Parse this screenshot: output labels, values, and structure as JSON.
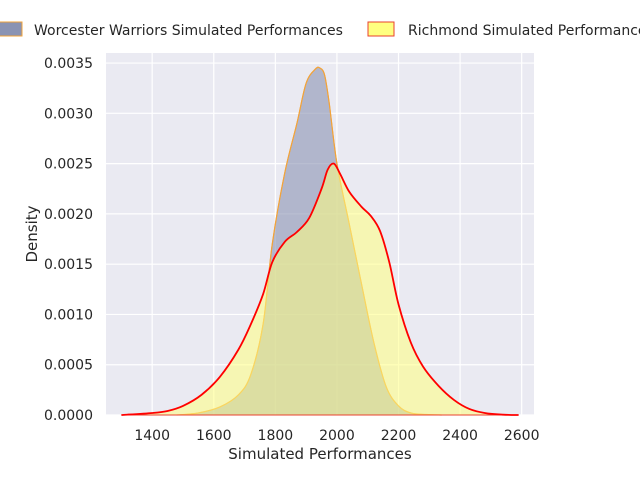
{
  "chart_data": {
    "type": "area",
    "title": "",
    "xlabel": "Simulated Performances",
    "ylabel": "Density",
    "xlim": [
      1250,
      2640
    ],
    "ylim": [
      0,
      0.0036
    ],
    "x_ticks": [
      1400,
      1600,
      1800,
      2000,
      2200,
      2400,
      2600
    ],
    "x_tick_labels": [
      "1400",
      "1600",
      "1800",
      "2000",
      "2200",
      "2400",
      "2600"
    ],
    "y_ticks": [
      0,
      0.0005,
      0.001,
      0.0015,
      0.002,
      0.0025,
      0.003,
      0.0035
    ],
    "y_tick_labels": [
      "0.0000",
      "0.0005",
      "0.0010",
      "0.0015",
      "0.0020",
      "0.0025",
      "0.0030",
      "0.0035"
    ],
    "grid": true,
    "legend_position": "top",
    "series": [
      {
        "name": "Worcester Warriors Simulated Performances",
        "fill": "#8a93b3",
        "edge": "#f2a33a",
        "x": [
          1480,
          1550,
          1620,
          1680,
          1720,
          1760,
          1790,
          1830,
          1870,
          1900,
          1930,
          1945,
          1960,
          1975,
          2000,
          2040,
          2080,
          2120,
          2160,
          2200,
          2240,
          2290,
          2340
        ],
        "y": [
          0.0,
          2e-05,
          8e-05,
          0.0002,
          0.0004,
          0.0009,
          0.0017,
          0.0024,
          0.0029,
          0.0033,
          0.00344,
          0.00345,
          0.00338,
          0.0031,
          0.0025,
          0.0019,
          0.0013,
          0.00072,
          0.00028,
          9e-05,
          2e-05,
          5e-06,
          0.0
        ]
      },
      {
        "name": "Richmond Simulated Performances",
        "fill": "#ffff80",
        "edge": "#e8422e",
        "line": "#ff0000",
        "x": [
          1300,
          1400,
          1450,
          1500,
          1560,
          1620,
          1680,
          1720,
          1760,
          1790,
          1830,
          1870,
          1910,
          1950,
          1970,
          1990,
          2010,
          2040,
          2080,
          2110,
          2140,
          2170,
          2200,
          2240,
          2280,
          2330,
          2380,
          2430,
          2480,
          2540,
          2590
        ],
        "y": [
          0.0,
          2e-05,
          4e-05,
          9e-05,
          0.0002,
          0.00038,
          0.00065,
          0.0009,
          0.0012,
          0.00152,
          0.00172,
          0.00182,
          0.00196,
          0.00225,
          0.00244,
          0.0025,
          0.0024,
          0.00222,
          0.00207,
          0.00198,
          0.00183,
          0.00152,
          0.0011,
          0.00072,
          0.00048,
          0.00029,
          0.00015,
          6e-05,
          2e-05,
          3e-06,
          0.0
        ]
      }
    ]
  }
}
